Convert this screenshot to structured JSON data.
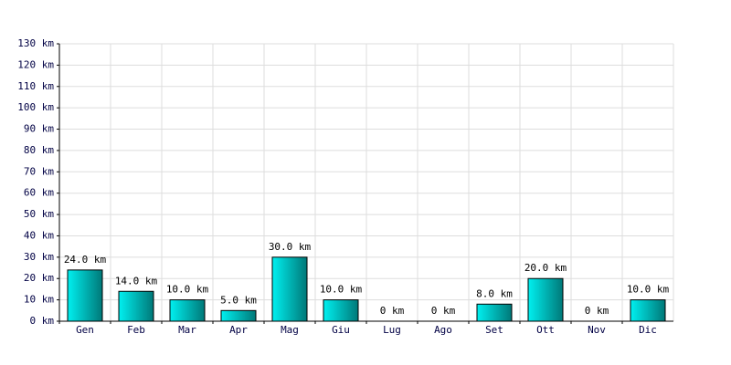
{
  "chart_data": {
    "type": "bar",
    "categories": [
      "Gen",
      "Feb",
      "Mar",
      "Apr",
      "Mag",
      "Giu",
      "Lug",
      "Ago",
      "Set",
      "Ott",
      "Nov",
      "Dic"
    ],
    "values": [
      24,
      14,
      10,
      5,
      30,
      10,
      0,
      0,
      8,
      20,
      0,
      10
    ],
    "value_labels": [
      "24.0 km",
      "14.0 km",
      "10.0 km",
      "5.0 km",
      "30.0 km",
      "10.0 km",
      "0 km",
      "0 km",
      "8.0 km",
      "20.0 km",
      "0 km",
      "10.0 km"
    ],
    "color": "#00a8a8",
    "ylim": [
      0,
      130
    ],
    "yticks": [
      {
        "value": 0,
        "label": "0 km"
      },
      {
        "value": 10,
        "label": "10 km"
      },
      {
        "value": 20,
        "label": "20 km"
      },
      {
        "value": 30,
        "label": "30 km"
      },
      {
        "value": 40,
        "label": "40 km"
      },
      {
        "value": 50,
        "label": "50 km"
      },
      {
        "value": 60,
        "label": "60 km"
      },
      {
        "value": 70,
        "label": "70 km"
      },
      {
        "value": 80,
        "label": "80 km"
      },
      {
        "value": 90,
        "label": "90 km"
      },
      {
        "value": 100,
        "label": "100 km"
      },
      {
        "value": 110,
        "label": "110 km"
      },
      {
        "value": 120,
        "label": "120 km"
      },
      {
        "value": 130,
        "label": "130 km"
      }
    ],
    "grid": true
  }
}
